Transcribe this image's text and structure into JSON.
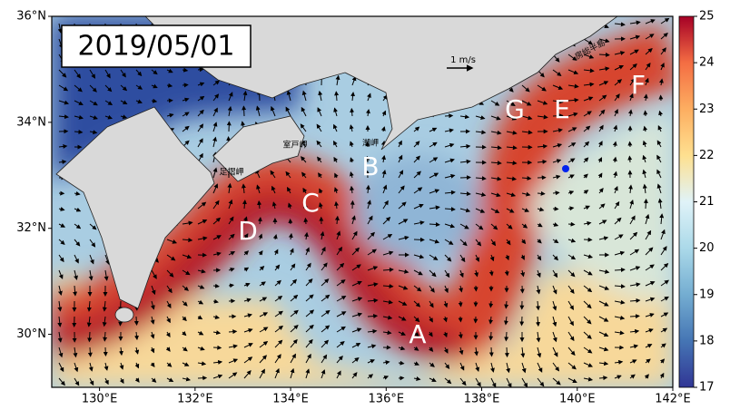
{
  "map": {
    "date": "2019/05/01",
    "lat_ticks": [
      {
        "value": 36,
        "label": "36°N"
      },
      {
        "value": 34,
        "label": "34°N"
      },
      {
        "value": 32,
        "label": "32°N"
      },
      {
        "value": 30,
        "label": "30°N"
      }
    ],
    "lat_range": [
      29,
      36
    ],
    "lon_ticks": [
      {
        "value": 130,
        "label": "130°E"
      },
      {
        "value": 132,
        "label": "132°E"
      },
      {
        "value": 134,
        "label": "134°E"
      },
      {
        "value": 136,
        "label": "136°E"
      },
      {
        "value": 138,
        "label": "138°E"
      },
      {
        "value": 140,
        "label": "140°E"
      },
      {
        "value": 142,
        "label": "142°E"
      }
    ],
    "lon_range": [
      129,
      142
    ],
    "colorbar": {
      "lim": [
        17,
        25
      ],
      "ticks": [
        17,
        18,
        19,
        20,
        21,
        22,
        23,
        24,
        25
      ]
    },
    "vector_scale": "1 m/s",
    "places": [
      "室戸岬",
      "潮岬",
      "足摺岬",
      "房総半島"
    ],
    "labels": [
      "A",
      "B",
      "C",
      "D",
      "E",
      "F",
      "G"
    ]
  }
}
